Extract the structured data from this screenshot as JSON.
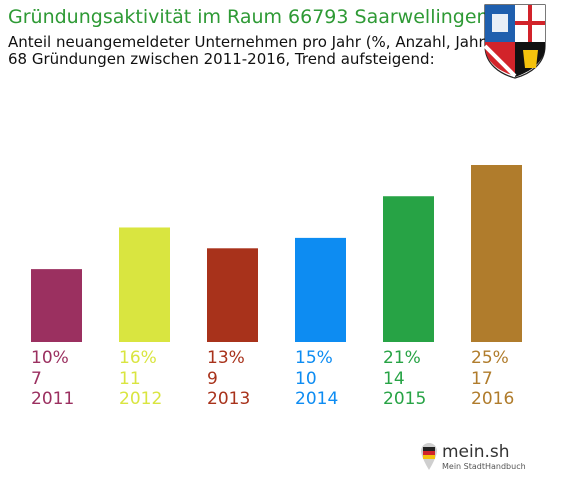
{
  "header": {
    "title": "Gründungsaktivität im Raum 66793 Saarwellingen",
    "subtitle_line1": "Anteil neuangemeldeter Unternehmen pro Jahr (%, Anzahl, Jahr)",
    "subtitle_line2": "68 Gründungen zwischen 2011-2016, Trend aufsteigend:"
  },
  "chart_data": {
    "type": "bar",
    "title": "Gründungsaktivität im Raum 66793 Saarwellingen",
    "categories": [
      "2011",
      "2012",
      "2013",
      "2014",
      "2015",
      "2016"
    ],
    "series": [
      {
        "values": [
          7,
          11,
          9,
          10,
          14,
          17
        ]
      }
    ],
    "percent_labels": [
      "10%",
      "16%",
      "13%",
      "15%",
      "21%",
      "25%"
    ],
    "count_labels": [
      "7",
      "11",
      "9",
      "10",
      "14",
      "17"
    ],
    "colors": [
      "#9b3060",
      "#d9e540",
      "#a8321b",
      "#0d8cf2",
      "#27a345",
      "#b07c2c"
    ],
    "ylim": [
      0,
      17
    ],
    "grid": false,
    "legend": "none"
  },
  "logo": {
    "brand": "mein.sh",
    "tagline": "Mein StadtHandbuch"
  },
  "crest": {
    "icon": "saarland-coat-of-arms"
  }
}
